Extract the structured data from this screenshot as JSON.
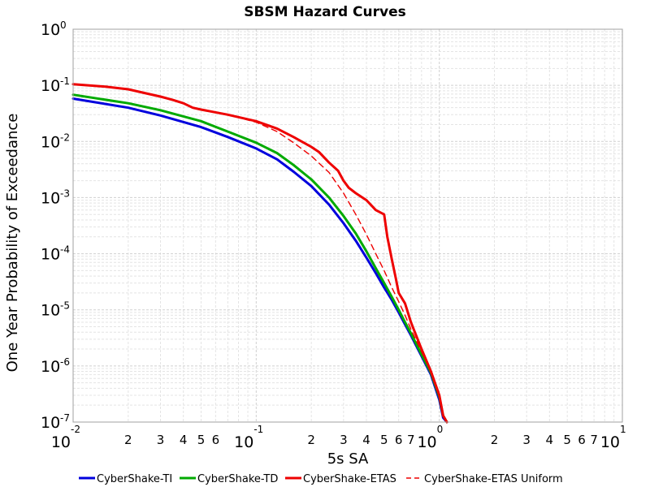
{
  "chart_data": {
    "type": "line",
    "title": "SBSM Hazard Curves",
    "xlabel": "5s SA",
    "ylabel": "One Year Probability of Exceedance",
    "xscale": "log",
    "yscale": "log",
    "xlim": [
      0.01,
      10
    ],
    "ylim": [
      1e-07,
      1
    ],
    "grid": true,
    "legend_position": "bottom",
    "x_major_ticks": [
      {
        "base": "10",
        "exp": "-2"
      },
      {
        "base": "10",
        "exp": "-1"
      },
      {
        "base": "10",
        "exp": "0"
      },
      {
        "base": "10",
        "exp": "1"
      }
    ],
    "y_major_ticks": [
      {
        "base": "10",
        "exp": "0"
      },
      {
        "base": "10",
        "exp": "-1"
      },
      {
        "base": "10",
        "exp": "-2"
      },
      {
        "base": "10",
        "exp": "-3"
      },
      {
        "base": "10",
        "exp": "-4"
      },
      {
        "base": "10",
        "exp": "-5"
      },
      {
        "base": "10",
        "exp": "-6"
      },
      {
        "base": "10",
        "exp": "-7"
      }
    ],
    "x_minor_tick_labels": [
      "2",
      "3",
      "4",
      "5",
      "6",
      "2",
      "3",
      "4",
      "5",
      "6",
      "7",
      "2",
      "3",
      "4",
      "5",
      "6",
      "7"
    ],
    "x_minor_tick_values": [
      0.02,
      0.03,
      0.04,
      0.05,
      0.06,
      0.2,
      0.3,
      0.4,
      0.5,
      0.6,
      0.7,
      2,
      3,
      4,
      5,
      6,
      7
    ],
    "series": [
      {
        "name": "CyberShake-TI",
        "color": "#0000dd",
        "dash": "solid",
        "x": [
          0.01,
          0.02,
          0.03,
          0.05,
          0.07,
          0.1,
          0.13,
          0.16,
          0.2,
          0.25,
          0.3,
          0.35,
          0.4,
          0.45,
          0.5,
          0.55,
          0.6,
          0.65,
          0.7,
          0.8,
          0.9,
          1.0,
          1.05,
          1.1
        ],
        "y": [
          0.058,
          0.04,
          0.029,
          0.018,
          0.012,
          0.0075,
          0.0048,
          0.0029,
          0.0016,
          0.00075,
          0.00035,
          0.00017,
          8.5e-05,
          4.5e-05,
          2.5e-05,
          1.5e-05,
          9e-06,
          5.5e-06,
          3.5e-06,
          1.5e-06,
          7e-07,
          2.5e-07,
          1.2e-07,
          1e-07
        ]
      },
      {
        "name": "CyberShake-TD",
        "color": "#00aa00",
        "dash": "solid",
        "x": [
          0.01,
          0.02,
          0.03,
          0.05,
          0.07,
          0.1,
          0.13,
          0.16,
          0.2,
          0.25,
          0.3,
          0.35,
          0.4,
          0.45,
          0.5,
          0.55,
          0.6,
          0.65,
          0.7,
          0.8,
          0.9,
          1.0,
          1.05,
          1.1
        ],
        "y": [
          0.068,
          0.048,
          0.036,
          0.023,
          0.015,
          0.0095,
          0.0062,
          0.0038,
          0.0021,
          0.001,
          0.00047,
          0.00023,
          0.00011,
          5.5e-05,
          3e-05,
          1.7e-05,
          1e-05,
          6e-06,
          3.8e-06,
          1.6e-06,
          7.5e-07,
          2.8e-07,
          1.3e-07,
          1e-07
        ]
      },
      {
        "name": "CyberShake-ETAS",
        "color": "#ee0000",
        "dash": "solid",
        "x": [
          0.01,
          0.015,
          0.02,
          0.025,
          0.03,
          0.035,
          0.04,
          0.045,
          0.05,
          0.07,
          0.1,
          0.13,
          0.16,
          0.2,
          0.22,
          0.25,
          0.28,
          0.3,
          0.32,
          0.35,
          0.4,
          0.45,
          0.5,
          0.52,
          0.55,
          0.58,
          0.6,
          0.65,
          0.7,
          0.8,
          0.9,
          1.0,
          1.05,
          1.1
        ],
        "y": [
          0.105,
          0.095,
          0.085,
          0.072,
          0.063,
          0.055,
          0.048,
          0.04,
          0.037,
          0.03,
          0.023,
          0.017,
          0.012,
          0.008,
          0.0065,
          0.0042,
          0.003,
          0.002,
          0.0015,
          0.0012,
          0.0009,
          0.0006,
          0.0005,
          0.0002,
          8e-05,
          3.5e-05,
          2e-05,
          1.3e-05,
          6e-06,
          2e-06,
          8e-07,
          3e-07,
          1.3e-07,
          1e-07
        ]
      },
      {
        "name": "CyberShake-ETAS Uniform",
        "color": "#ee0000",
        "dash": "dashed",
        "x": [
          0.01,
          0.015,
          0.02,
          0.025,
          0.03,
          0.035,
          0.04,
          0.045,
          0.05,
          0.07,
          0.1,
          0.13,
          0.16,
          0.2,
          0.25,
          0.3,
          0.35,
          0.4,
          0.45,
          0.5,
          0.55,
          0.6,
          0.65,
          0.7,
          0.8,
          0.9,
          1.0,
          1.05,
          1.1
        ],
        "y": [
          0.105,
          0.095,
          0.085,
          0.072,
          0.063,
          0.055,
          0.048,
          0.04,
          0.037,
          0.03,
          0.022,
          0.015,
          0.0095,
          0.0055,
          0.0028,
          0.0012,
          0.0005,
          0.00022,
          0.0001,
          5e-05,
          2.5e-05,
          1.4e-05,
          8e-06,
          4.5e-06,
          1.8e-06,
          8e-07,
          3e-07,
          1.3e-07,
          1e-07
        ]
      }
    ]
  }
}
